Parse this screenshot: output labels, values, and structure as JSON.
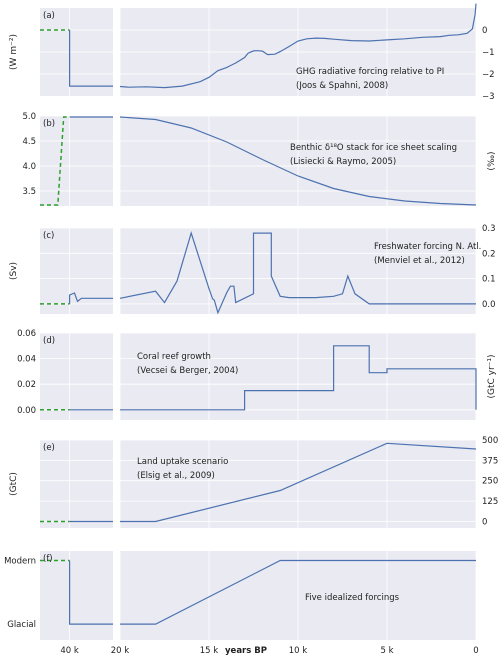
{
  "colors": {
    "line": "#4c72b0",
    "dashed": "#2ca02c",
    "plot_bg": "#eaeaf2"
  },
  "chart_data": [
    {
      "type": "line",
      "panel_label": "(a)",
      "ylabel_left": "(W m⁻²)",
      "ylabel_right": "",
      "annotation": [
        "GHG radiative forcing relative to PI",
        "(Joos & Spahni, 2008)"
      ],
      "ylim": [
        -3,
        1
      ],
      "left_ticks": [],
      "right_ticks": [
        {
          "v": 0,
          "t": "0"
        },
        {
          "v": -1,
          "t": "−1"
        },
        {
          "v": -2,
          "t": "−2"
        },
        {
          "v": -3,
          "t": "−3"
        }
      ],
      "ygrid": [
        0,
        -1,
        -2
      ],
      "dashed": [
        [
          43,
          0.0
        ],
        [
          40,
          0.0
        ]
      ],
      "left_series": [
        [
          40,
          0.0
        ],
        [
          40,
          -2.55
        ],
        [
          35.6,
          -2.55
        ]
      ],
      "right_series": [
        [
          20,
          -2.57
        ],
        [
          19.5,
          -2.6
        ],
        [
          18.5,
          -2.58
        ],
        [
          17.5,
          -2.62
        ],
        [
          16.5,
          -2.55
        ],
        [
          15.5,
          -2.35
        ],
        [
          15,
          -2.15
        ],
        [
          14.5,
          -1.85
        ],
        [
          14,
          -1.7
        ],
        [
          13.8,
          -1.62
        ],
        [
          13.5,
          -1.5
        ],
        [
          13,
          -1.25
        ],
        [
          12.8,
          -1.05
        ],
        [
          12.5,
          -0.95
        ],
        [
          12.3,
          -0.94
        ],
        [
          12,
          -0.96
        ],
        [
          11.7,
          -1.12
        ],
        [
          11.3,
          -1.1
        ],
        [
          11,
          -0.98
        ],
        [
          10.5,
          -0.75
        ],
        [
          10,
          -0.5
        ],
        [
          9.5,
          -0.4
        ],
        [
          9,
          -0.37
        ],
        [
          8.5,
          -0.38
        ],
        [
          8,
          -0.42
        ],
        [
          7,
          -0.48
        ],
        [
          6,
          -0.5
        ],
        [
          5,
          -0.45
        ],
        [
          4,
          -0.4
        ],
        [
          3,
          -0.33
        ],
        [
          2,
          -0.3
        ],
        [
          1.5,
          -0.24
        ],
        [
          1,
          -0.22
        ],
        [
          0.5,
          -0.15
        ],
        [
          0.2,
          0.05
        ],
        [
          0.05,
          0.7
        ],
        [
          0,
          1.2
        ]
      ]
    },
    {
      "type": "line",
      "panel_label": "(b)",
      "ylabel_left": "",
      "ylabel_right": "(‰)",
      "annotation": [
        "Benthic δ¹⁸O stack for ice sheet scaling",
        "(Lisiecki & Raymo, 2005)"
      ],
      "ylim": [
        3.2,
        5.0
      ],
      "left_ticks": [
        {
          "v": 5.0,
          "t": "5.0"
        },
        {
          "v": 4.5,
          "t": "4.5"
        },
        {
          "v": 4.0,
          "t": "4.0"
        },
        {
          "v": 3.5,
          "t": "3.5"
        }
      ],
      "right_ticks": [],
      "ygrid": [
        5.0,
        4.5,
        4.0,
        3.5
      ],
      "dashed": [
        [
          43,
          3.22
        ],
        [
          41.2,
          3.22
        ],
        [
          40.6,
          4.98
        ],
        [
          40,
          4.98
        ]
      ],
      "left_series": [
        [
          40,
          4.98
        ],
        [
          35.6,
          4.98
        ]
      ],
      "right_series": [
        [
          20,
          4.98
        ],
        [
          18,
          4.93
        ],
        [
          16,
          4.76
        ],
        [
          14,
          4.48
        ],
        [
          12,
          4.13
        ],
        [
          10,
          3.8
        ],
        [
          8,
          3.55
        ],
        [
          6,
          3.39
        ],
        [
          4,
          3.3
        ],
        [
          2,
          3.25
        ],
        [
          0,
          3.22
        ]
      ]
    },
    {
      "type": "line",
      "panel_label": "(c)",
      "ylabel_left": "(Sv)",
      "ylabel_right": "",
      "annotation": [
        "Freshwater forcing N. Atl.",
        "(Menviel et al., 2012)"
      ],
      "ylim": [
        -0.04,
        0.3
      ],
      "left_ticks": [],
      "right_ticks": [
        {
          "v": 0.3,
          "t": "0.3"
        },
        {
          "v": 0.2,
          "t": "0.2"
        },
        {
          "v": 0.1,
          "t": "0.1"
        },
        {
          "v": 0.0,
          "t": "0.0"
        }
      ],
      "ygrid": [
        0.3,
        0.2,
        0.1,
        0.0
      ],
      "dashed": [
        [
          43,
          0.0
        ],
        [
          40,
          0.0
        ]
      ],
      "left_series": [
        [
          40,
          0.0
        ],
        [
          40,
          0.035
        ],
        [
          39.5,
          0.043
        ],
        [
          39.2,
          0.01
        ],
        [
          38.8,
          0.022
        ],
        [
          35.6,
          0.022
        ]
      ],
      "right_series": [
        [
          20,
          0.022
        ],
        [
          18,
          0.05
        ],
        [
          17.5,
          0.005
        ],
        [
          16.8,
          0.09
        ],
        [
          16,
          0.28
        ],
        [
          15,
          0.06
        ],
        [
          14.8,
          0.02
        ],
        [
          14.7,
          0.015
        ],
        [
          14.5,
          -0.035
        ],
        [
          14,
          0.045
        ],
        [
          13.8,
          0.07
        ],
        [
          13.6,
          0.07
        ],
        [
          13.5,
          0.005
        ],
        [
          12.5,
          0.04
        ],
        [
          12.5,
          0.28
        ],
        [
          11.5,
          0.28
        ],
        [
          11.5,
          0.11
        ],
        [
          11,
          0.03
        ],
        [
          10.5,
          0.025
        ],
        [
          9,
          0.025
        ],
        [
          8,
          0.03
        ],
        [
          7.5,
          0.04
        ],
        [
          7.2,
          0.11
        ],
        [
          6.8,
          0.04
        ],
        [
          6,
          0.0
        ],
        [
          0,
          0.0
        ]
      ]
    },
    {
      "type": "line",
      "panel_label": "(d)",
      "ylabel_left": "",
      "ylabel_right": "(GtC yr⁻¹)",
      "annotation": [
        "Coral reef growth",
        "(Vecsei & Berger, 2004)"
      ],
      "ylim": [
        -0.008,
        0.06
      ],
      "left_ticks": [
        {
          "v": 0.06,
          "t": "0.06"
        },
        {
          "v": 0.04,
          "t": "0.04"
        },
        {
          "v": 0.02,
          "t": "0.02"
        },
        {
          "v": 0.0,
          "t": "0.00"
        }
      ],
      "right_ticks": [],
      "ygrid": [
        0.06,
        0.04,
        0.02,
        0.0
      ],
      "dashed": [
        [
          43,
          0.0
        ],
        [
          40,
          0.0
        ]
      ],
      "left_series": [
        [
          40,
          0.0
        ],
        [
          35.6,
          0.0
        ]
      ],
      "right_series": [
        [
          20,
          0.0
        ],
        [
          13,
          0.0
        ],
        [
          13,
          0.015
        ],
        [
          8,
          0.015
        ],
        [
          8,
          0.05
        ],
        [
          6,
          0.05
        ],
        [
          6,
          0.029
        ],
        [
          5,
          0.029
        ],
        [
          5,
          0.032
        ],
        [
          0,
          0.032
        ],
        [
          0,
          0.0
        ]
      ]
    },
    {
      "type": "line",
      "panel_label": "(e)",
      "ylabel_left": "(GtC)",
      "ylabel_right": "",
      "annotation": [
        "Land uptake scenario",
        "(Elsig et al., 2009)"
      ],
      "ylim": [
        -40,
        500
      ],
      "left_ticks": [],
      "right_ticks": [
        {
          "v": 500,
          "t": "500"
        },
        {
          "v": 375,
          "t": "375"
        },
        {
          "v": 250,
          "t": "250"
        },
        {
          "v": 125,
          "t": "125"
        },
        {
          "v": 0,
          "t": "0"
        }
      ],
      "ygrid": [
        500,
        375,
        250,
        125,
        0
      ],
      "dashed": [
        [
          43,
          0
        ],
        [
          40,
          0
        ]
      ],
      "left_series": [
        [
          40,
          0
        ],
        [
          35.6,
          0
        ]
      ],
      "right_series": [
        [
          20,
          0
        ],
        [
          18,
          0
        ],
        [
          11,
          190
        ],
        [
          5,
          480
        ],
        [
          0,
          445
        ]
      ]
    },
    {
      "type": "line",
      "panel_label": "(f)",
      "ylabel_left": "",
      "ylabel_right": "",
      "annotation": [
        "Five idealized forcings"
      ],
      "ylim": [
        -0.25,
        1.15
      ],
      "left_ticks": [
        {
          "v": 1,
          "t": "Modern"
        },
        {
          "v": 0,
          "t": "Glacial"
        }
      ],
      "right_ticks": [],
      "ygrid": [],
      "dashed": [
        [
          43,
          1
        ],
        [
          40,
          1
        ]
      ],
      "left_series": [
        [
          40,
          1
        ],
        [
          40,
          0
        ],
        [
          35.6,
          0
        ]
      ],
      "right_series": [
        [
          20,
          0
        ],
        [
          18,
          0
        ],
        [
          11,
          1
        ],
        [
          0,
          1
        ]
      ]
    }
  ],
  "x_axis": {
    "label": "years BP",
    "left_ticks": [
      {
        "v": 40,
        "t": "40 k"
      }
    ],
    "right_ticks": [
      {
        "v": 20,
        "t": "20 k"
      },
      {
        "v": 15,
        "t": "15 k"
      },
      {
        "v": 10,
        "t": "10 k"
      },
      {
        "v": 5,
        "t": "5 k"
      },
      {
        "v": 0,
        "t": "0"
      }
    ]
  }
}
